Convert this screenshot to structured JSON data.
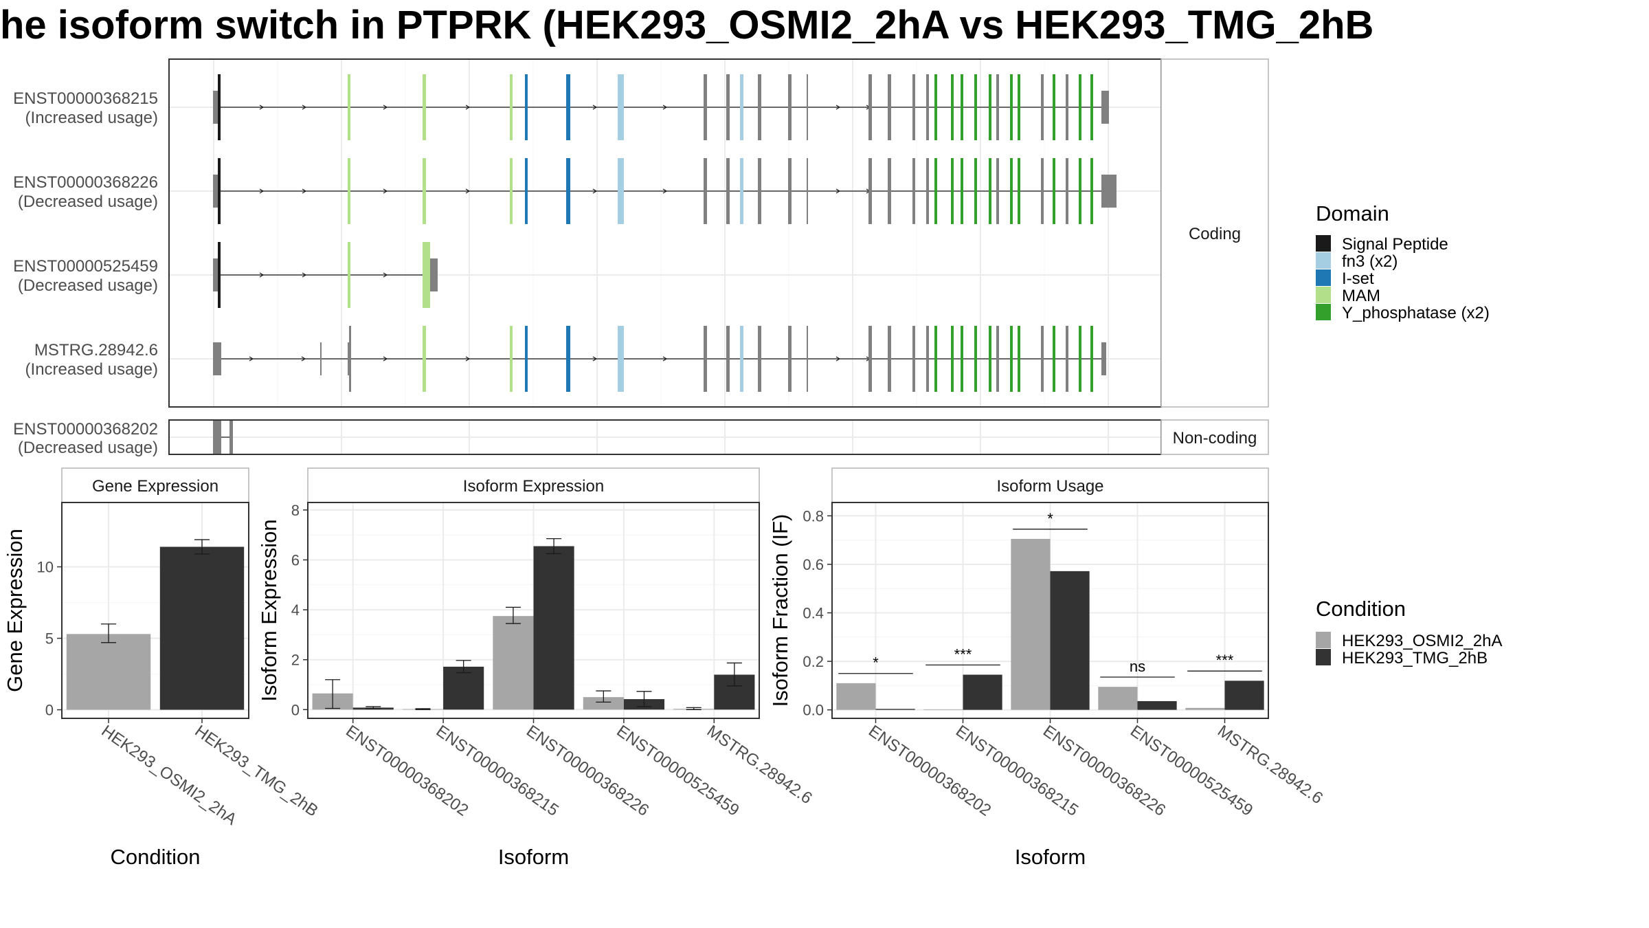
{
  "title": "he isoform switch in PTPRK (HEK293_OSMI2_2hA vs HEK293_TMG_2hB",
  "colors": {
    "signal_peptide": "#1a1a1a",
    "fn3": "#a6cee3",
    "iset": "#1f78b4",
    "mam": "#b2df8a",
    "y_phosphatase": "#33a02c",
    "intron_exon": "#808080",
    "cond_a": "#a6a6a6",
    "cond_b": "#333333"
  },
  "structure": {
    "strips": [
      "Coding",
      "Non-coding"
    ],
    "transcripts": [
      {
        "id": "ENST00000368215",
        "usage": "(Increased usage)",
        "group": "Coding"
      },
      {
        "id": "ENST00000368226",
        "usage": "(Decreased usage)",
        "group": "Coding"
      },
      {
        "id": "ENST00000525459",
        "usage": "(Decreased usage)",
        "group": "Coding"
      },
      {
        "id": "MSTRG.28942.6",
        "usage": "(Increased usage)",
        "group": "Coding"
      },
      {
        "id": "ENST00000368202",
        "usage": "(Decreased usage)",
        "group": "Non-coding"
      }
    ]
  },
  "legend_domain": {
    "title": "Domain",
    "items": [
      {
        "label": "Signal Peptide",
        "color": "#1a1a1a"
      },
      {
        "label": "fn3 (x2)",
        "color": "#a6cee3"
      },
      {
        "label": "I-set",
        "color": "#1f78b4"
      },
      {
        "label": "MAM",
        "color": "#b2df8a"
      },
      {
        "label": "Y_phosphatase (x2)",
        "color": "#33a02c"
      }
    ]
  },
  "legend_condition": {
    "title": "Condition",
    "items": [
      {
        "label": "HEK293_OSMI2_2hA",
        "color": "#a6a6a6"
      },
      {
        "label": "HEK293_TMG_2hB",
        "color": "#333333"
      }
    ]
  },
  "chart_data": [
    {
      "type": "bar",
      "title": "Gene Expression",
      "xlabel": "Condition",
      "ylabel": "Gene Expression",
      "ylim": [
        -0.6,
        14.5
      ],
      "yticks": [
        0,
        5,
        10
      ],
      "categories": [
        "HEK293_OSMI2_2hA",
        "HEK293_TMG_2hB"
      ],
      "values": [
        5.3,
        11.4
      ],
      "errors": [
        [
          4.7,
          6.0
        ],
        [
          10.9,
          11.9
        ]
      ]
    },
    {
      "type": "bar",
      "title": "Isoform Expression",
      "xlabel": "Isoform",
      "ylabel": "Isoform Expression",
      "ylim": [
        -0.35,
        8.3
      ],
      "yticks": [
        0,
        2,
        4,
        6,
        8
      ],
      "categories": [
        "ENST00000368202",
        "ENST00000368215",
        "ENST00000368226",
        "ENST00000525459",
        "MSTRG.28942.6"
      ],
      "series": [
        {
          "name": "HEK293_OSMI2_2hA",
          "values": [
            0.65,
            0.02,
            3.75,
            0.5,
            0.03
          ],
          "errors": [
            [
              0.05,
              1.2
            ],
            [
              0.0,
              0.04
            ],
            [
              3.45,
              4.1
            ],
            [
              0.3,
              0.75
            ],
            [
              0.0,
              0.08
            ]
          ]
        },
        {
          "name": "HEK293_TMG_2hB",
          "values": [
            0.08,
            1.72,
            6.55,
            0.42,
            1.4
          ],
          "errors": [
            [
              0.03,
              0.12
            ],
            [
              1.48,
              1.97
            ],
            [
              6.25,
              6.85
            ],
            [
              0.12,
              0.73
            ],
            [
              0.95,
              1.87
            ]
          ]
        }
      ]
    },
    {
      "type": "bar",
      "title": "Isoform Usage",
      "xlabel": "Isoform",
      "ylabel": "Isoform Fraction (IF)",
      "ylim": [
        -0.035,
        0.855
      ],
      "yticks": [
        0.0,
        0.2,
        0.4,
        0.6,
        0.8
      ],
      "ytick_labels": [
        "0.0",
        "0.2",
        "0.4",
        "0.6",
        "0.8"
      ],
      "categories": [
        "ENST00000368202",
        "ENST00000368215",
        "ENST00000368226",
        "ENST00000525459",
        "MSTRG.28942.6"
      ],
      "series": [
        {
          "name": "HEK293_OSMI2_2hA",
          "values": [
            0.11,
            0.002,
            0.705,
            0.095,
            0.008
          ]
        },
        {
          "name": "HEK293_TMG_2hB",
          "values": [
            0.004,
            0.145,
            0.572,
            0.036,
            0.12
          ]
        }
      ],
      "significance": [
        {
          "label": "*",
          "y": 0.15
        },
        {
          "label": "***",
          "y": 0.185
        },
        {
          "label": "*",
          "y": 0.745
        },
        {
          "label": "ns",
          "y": 0.135
        },
        {
          "label": "***",
          "y": 0.16
        }
      ]
    }
  ]
}
